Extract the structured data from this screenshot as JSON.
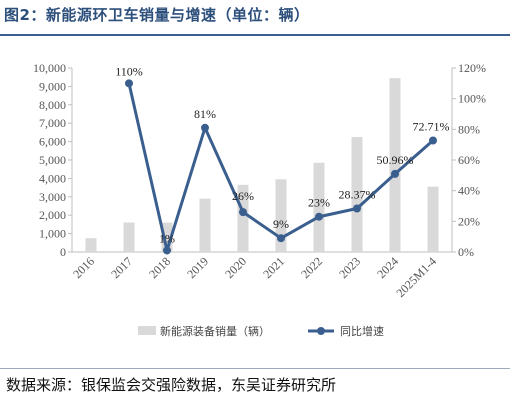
{
  "header": {
    "title": "图2：新能源环卫车销量与增速（单位：辆）"
  },
  "footer": {
    "source": "数据来源：银保监会交强险数据，东吴证券研究所"
  },
  "colors": {
    "bar": "#d9d9d9",
    "line": "#3a5f8f",
    "title": "#2d4f7c"
  },
  "chart_data": {
    "type": "bar+line",
    "categories": [
      "2016",
      "2017",
      "2018",
      "2019",
      "2020",
      "2021",
      "2022",
      "2023",
      "2024",
      "2025M1-4"
    ],
    "series": [
      {
        "name": "新能源装备销量（辆）",
        "type": "bar",
        "axis": "left",
        "values": [
          750,
          1600,
          1600,
          2900,
          3650,
          3950,
          4850,
          6250,
          9450,
          3550
        ]
      },
      {
        "name": "同比增速",
        "type": "line",
        "axis": "right",
        "values": [
          null,
          110,
          1,
          81,
          26,
          9,
          23,
          28.37,
          50.96,
          72.71
        ],
        "labels": [
          "",
          "110%",
          "1%",
          "81%",
          "26%",
          "9%",
          "23%",
          "28.37%",
          "50.96%",
          "72.71%"
        ]
      }
    ],
    "left_axis": {
      "ylim": [
        0,
        10000
      ],
      "ticks": [
        "0",
        "1,000",
        "2,000",
        "3,000",
        "4,000",
        "5,000",
        "6,000",
        "7,000",
        "8,000",
        "9,000",
        "10,000"
      ]
    },
    "right_axis": {
      "ylim": [
        0,
        120
      ],
      "ticks": [
        "0%",
        "20%",
        "40%",
        "60%",
        "80%",
        "100%",
        "120%"
      ]
    },
    "legend": {
      "placement": "bottom",
      "entries": [
        "新能源装备销量（辆）",
        "同比增速"
      ]
    },
    "grid": false
  }
}
